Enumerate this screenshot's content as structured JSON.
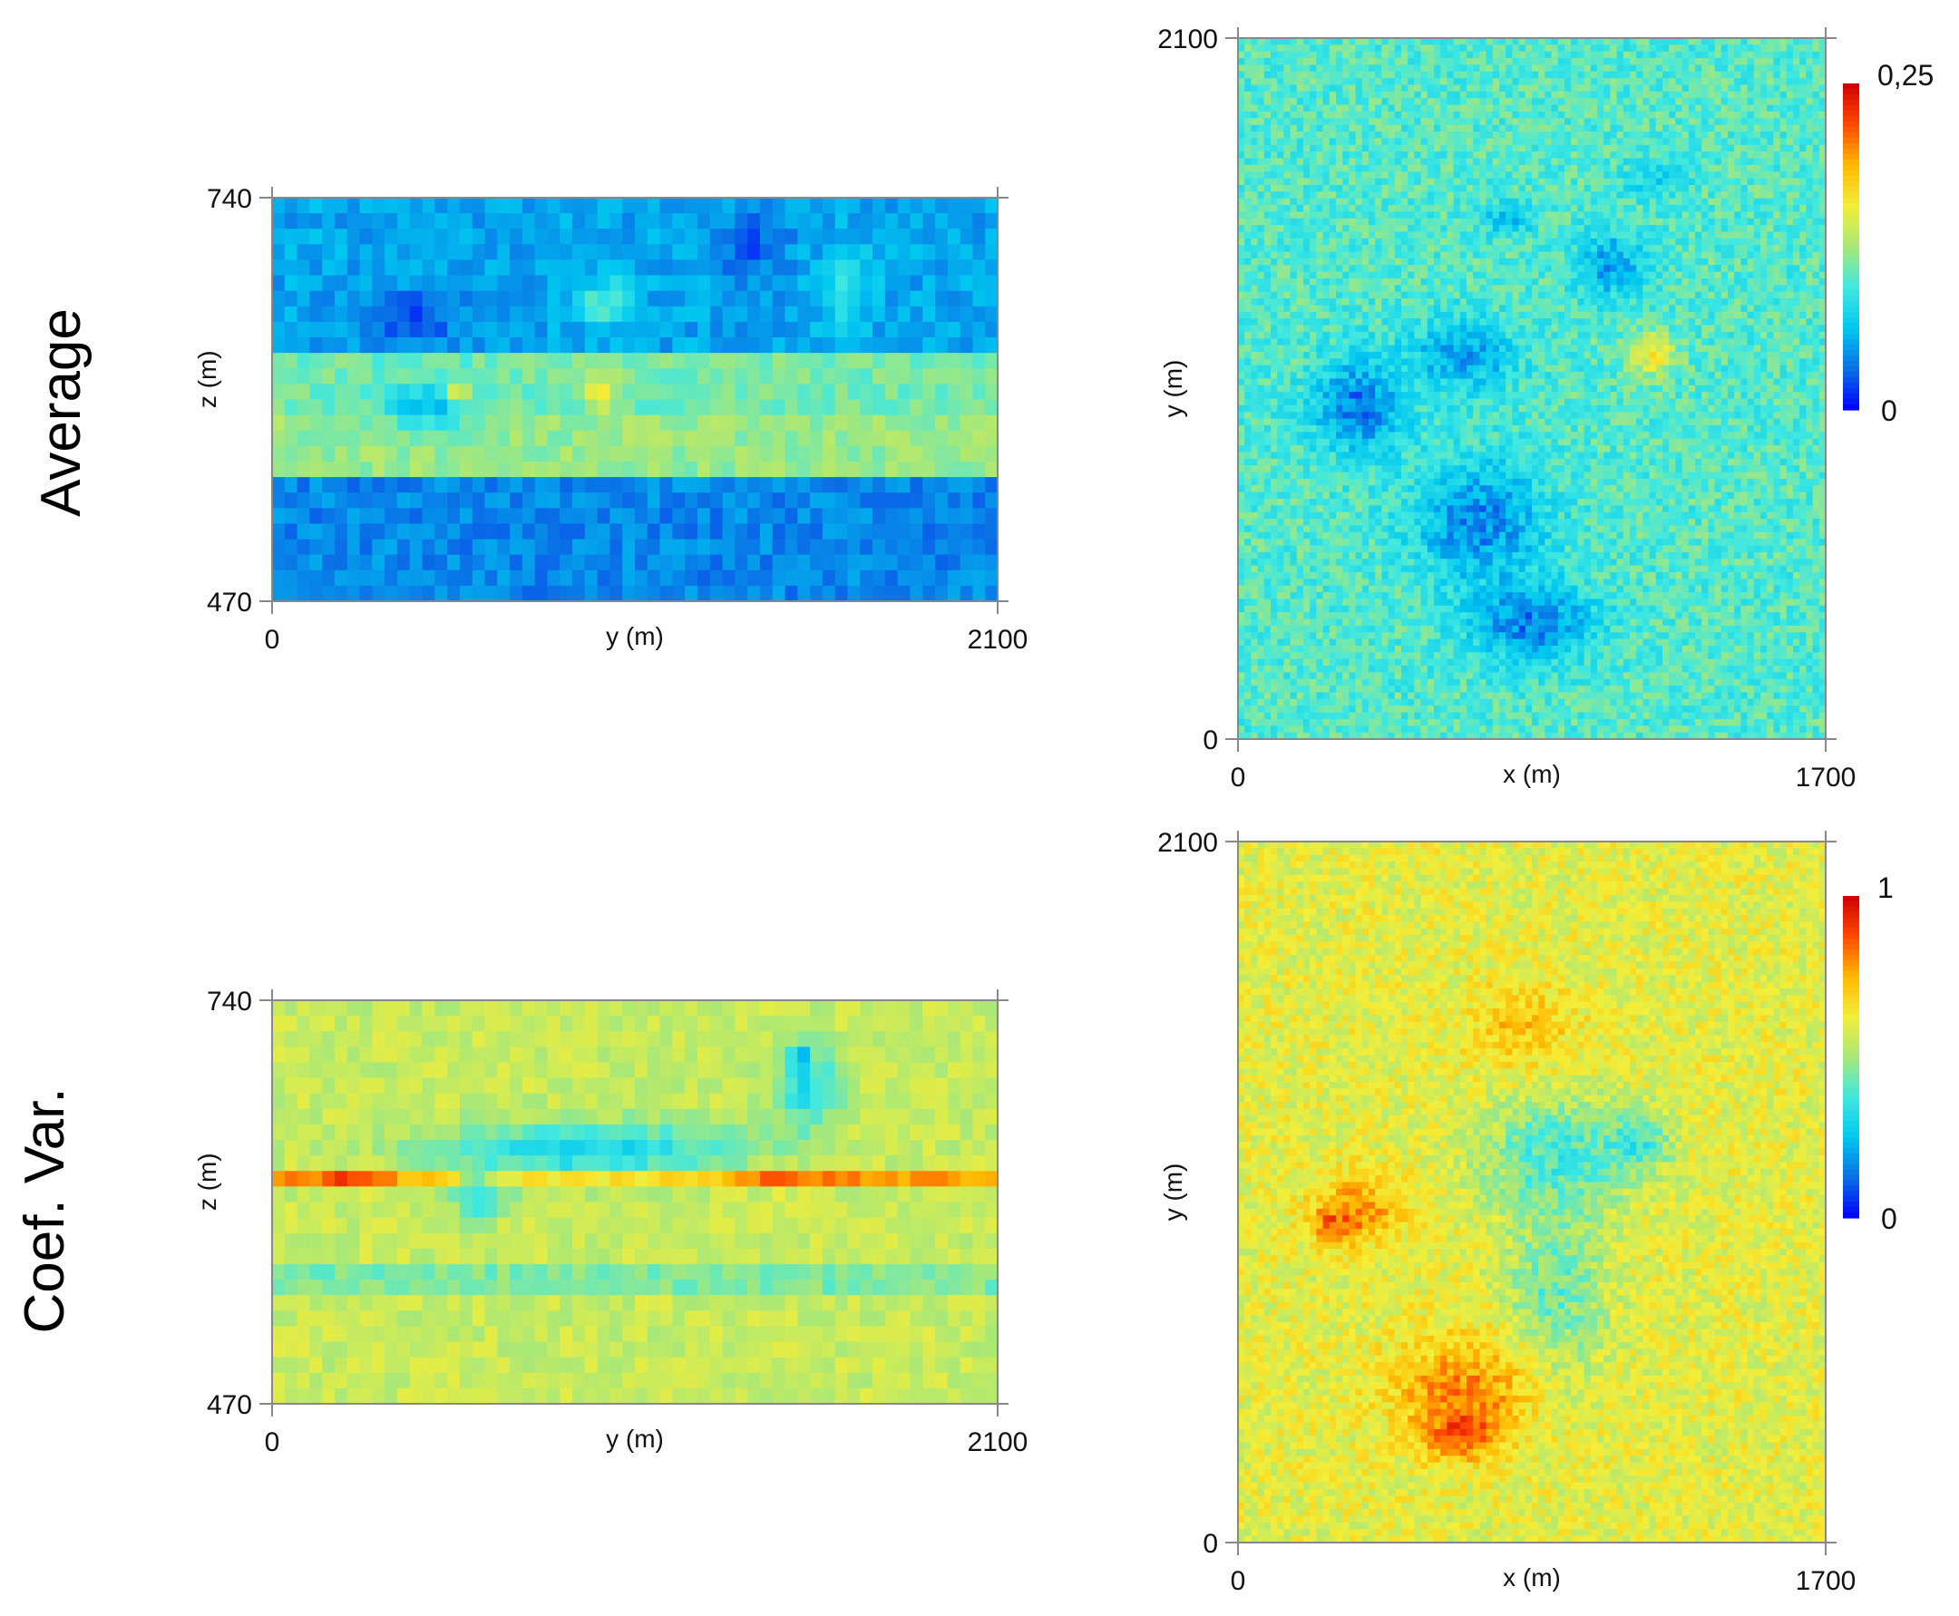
{
  "row_labels": {
    "average": "Average",
    "coef_var": "Coef. Var."
  },
  "colormap": [
    "#0000ff",
    "#0a6fe6",
    "#00c8f0",
    "#40e8e0",
    "#a8e878",
    "#f4ee38",
    "#ffb800",
    "#ff4800",
    "#d00000"
  ],
  "chart_data": [
    {
      "type": "heatmap",
      "row": "Average",
      "xlabel": "y (m)",
      "ylabel": "z (m)",
      "xlim": [
        0,
        2100
      ],
      "ylim": [
        470,
        740
      ],
      "x_ticks": [
        "0",
        "2100"
      ],
      "y_ticks": [
        "740",
        "470"
      ],
      "x_tick_values": [
        0,
        2100
      ],
      "y_tick_values": [
        740,
        470
      ],
      "value_range": [
        0,
        0.25
      ],
      "bands": [
        {
          "z": [
            640,
            740
          ],
          "value": 0.05
        },
        {
          "z": [
            595,
            640
          ],
          "value": 0.11
        },
        {
          "z": [
            555,
            595
          ],
          "value": 0.12
        },
        {
          "z": [
            470,
            555
          ],
          "value": 0.04
        }
      ],
      "features": [
        {
          "y": 400,
          "z": 660,
          "value": 0.025,
          "ry": 200,
          "rz": 25
        },
        {
          "y": 1380,
          "z": 710,
          "value": 0.025,
          "ry": 130,
          "rz": 30
        },
        {
          "y": 1660,
          "z": 680,
          "value": 0.09,
          "ry": 90,
          "rz": 35
        },
        {
          "y": 960,
          "z": 670,
          "value": 0.1,
          "ry": 110,
          "rz": 20
        },
        {
          "y": 450,
          "z": 600,
          "value": 0.06,
          "ry": 150,
          "rz": 20
        },
        {
          "y": 540,
          "z": 610,
          "value": 0.2,
          "ry": 25,
          "rz": 10
        },
        {
          "y": 950,
          "z": 608,
          "value": 0.16,
          "ry": 60,
          "rz": 15
        }
      ]
    },
    {
      "type": "heatmap",
      "row": "Average",
      "xlabel": "x (m)",
      "ylabel": "y (m)",
      "xlim": [
        0,
        1700
      ],
      "ylim": [
        0,
        2100
      ],
      "x_ticks": [
        "0",
        "1700"
      ],
      "y_ticks": [
        "2100",
        "0"
      ],
      "x_tick_values": [
        0,
        1700
      ],
      "y_tick_values": [
        2100,
        0
      ],
      "value_range": [
        0,
        0.25
      ],
      "colorbar_labels": [
        "0,25",
        "0"
      ],
      "background_value": 0.1,
      "features": [
        {
          "x": 350,
          "y": 1000,
          "value": 0.035,
          "rx": 170,
          "ry": 180
        },
        {
          "x": 650,
          "y": 1150,
          "value": 0.05,
          "rx": 200,
          "ry": 140
        },
        {
          "x": 700,
          "y": 650,
          "value": 0.04,
          "rx": 240,
          "ry": 230
        },
        {
          "x": 850,
          "y": 350,
          "value": 0.035,
          "rx": 220,
          "ry": 150
        },
        {
          "x": 1080,
          "y": 1420,
          "value": 0.05,
          "rx": 130,
          "ry": 130
        },
        {
          "x": 780,
          "y": 1560,
          "value": 0.06,
          "rx": 90,
          "ry": 70
        },
        {
          "x": 1200,
          "y": 1680,
          "value": 0.07,
          "rx": 110,
          "ry": 70
        },
        {
          "x": 1200,
          "y": 1150,
          "value": 0.16,
          "rx": 80,
          "ry": 80
        }
      ]
    },
    {
      "type": "heatmap",
      "row": "Coef. Var.",
      "xlabel": "y (m)",
      "ylabel": "z (m)",
      "xlim": [
        0,
        2100
      ],
      "ylim": [
        470,
        740
      ],
      "x_ticks": [
        "0",
        "2100"
      ],
      "y_ticks": [
        "740",
        "470"
      ],
      "x_tick_values": [
        0,
        2100
      ],
      "y_tick_values": [
        740,
        470
      ],
      "value_range": [
        0,
        1
      ],
      "bands": [
        {
          "z": [
            470,
            740
          ],
          "value": 0.55
        },
        {
          "z": [
            620,
            625
          ],
          "value": 0.78
        },
        {
          "z": [
            560,
            565
          ],
          "value": 0.65
        },
        {
          "z": [
            545,
            560
          ],
          "value": 0.45
        }
      ],
      "features": [
        {
          "y": 900,
          "z": 640,
          "value": 0.3,
          "ry": 560,
          "rz": 22
        },
        {
          "y": 1550,
          "z": 680,
          "value": 0.32,
          "ry": 110,
          "rz": 35
        },
        {
          "y": 1530,
          "z": 700,
          "value": 0.25,
          "ry": 40,
          "rz": 15
        },
        {
          "y": 600,
          "z": 610,
          "value": 0.35,
          "ry": 100,
          "rz": 20
        },
        {
          "y": 230,
          "z": 620,
          "value": 0.9,
          "ry": 110,
          "rz": 8
        },
        {
          "y": 1500,
          "z": 620,
          "value": 0.85,
          "ry": 150,
          "rz": 8
        }
      ]
    },
    {
      "type": "heatmap",
      "row": "Coef. Var.",
      "xlabel": "x (m)",
      "ylabel": "y (m)",
      "xlim": [
        0,
        1700
      ],
      "ylim": [
        0,
        2100
      ],
      "x_ticks": [
        "0",
        "1700"
      ],
      "y_ticks": [
        "2100",
        "0"
      ],
      "x_tick_values": [
        0,
        1700
      ],
      "y_tick_values": [
        2100,
        0
      ],
      "value_range": [
        0,
        1
      ],
      "colorbar_labels": [
        "1",
        "0"
      ],
      "background_value": 0.6,
      "features": [
        {
          "x": 920,
          "y": 1150,
          "value": 0.38,
          "rx": 260,
          "ry": 220
        },
        {
          "x": 920,
          "y": 750,
          "value": 0.42,
          "rx": 180,
          "ry": 330
        },
        {
          "x": 1150,
          "y": 1200,
          "value": 0.35,
          "rx": 120,
          "ry": 110
        },
        {
          "x": 350,
          "y": 1000,
          "value": 0.78,
          "rx": 170,
          "ry": 130
        },
        {
          "x": 280,
          "y": 950,
          "value": 0.88,
          "rx": 80,
          "ry": 60
        },
        {
          "x": 650,
          "y": 450,
          "value": 0.8,
          "rx": 260,
          "ry": 210
        },
        {
          "x": 650,
          "y": 330,
          "value": 0.9,
          "rx": 120,
          "ry": 90
        },
        {
          "x": 820,
          "y": 1550,
          "value": 0.72,
          "rx": 200,
          "ry": 160
        }
      ]
    }
  ]
}
